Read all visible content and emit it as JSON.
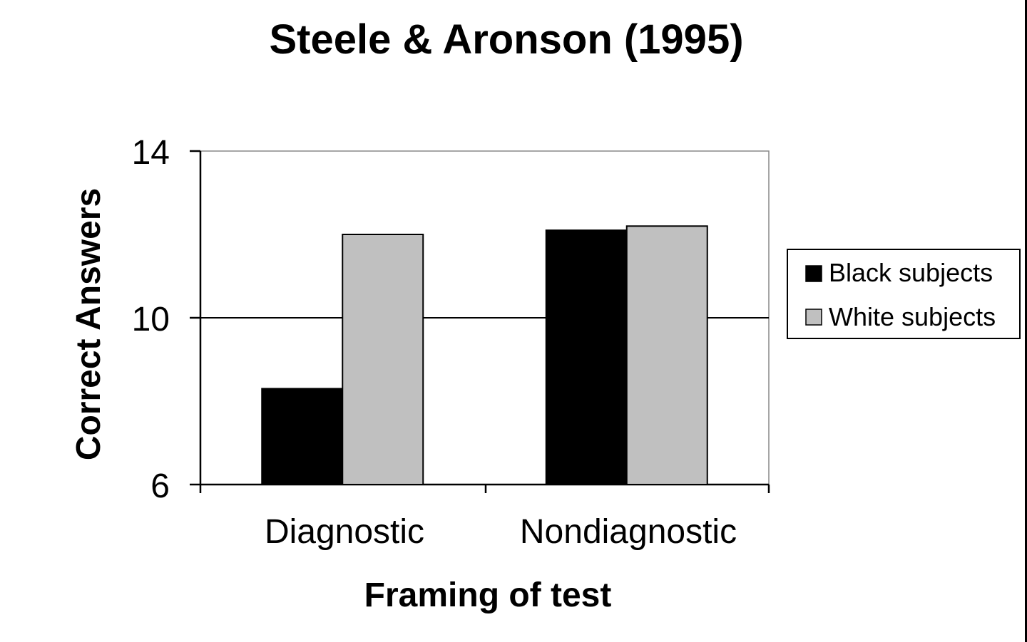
{
  "chart_data": {
    "type": "bar",
    "title": "Steele & Aronson (1995)",
    "xlabel": "Framing of test",
    "ylabel": "Correct Answers",
    "categories": [
      "Diagnostic",
      "Nondiagnostic"
    ],
    "series": [
      {
        "name": "Black subjects",
        "values": [
          8.3,
          12.1
        ],
        "color": "#000000"
      },
      {
        "name": "White subjects",
        "values": [
          12.0,
          12.2
        ],
        "color": "#c0c0c0"
      }
    ],
    "ylim": [
      6,
      14
    ],
    "yticks": [
      "6",
      "10",
      "14"
    ],
    "grid": "horizontal line at 10 only",
    "legend_position": "right"
  }
}
